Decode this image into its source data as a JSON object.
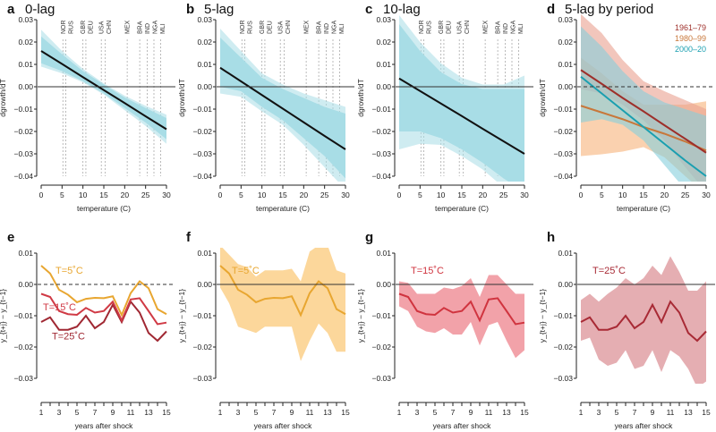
{
  "chart_data": [
    {
      "panel": "a",
      "title": "0-lag",
      "type": "line",
      "xlabel": "temperature (C)",
      "ylabel": "dgrowth/dT",
      "xlim": [
        0,
        30
      ],
      "ylim": [
        -0.04,
        0.03
      ],
      "xticks": [
        "0",
        "5",
        "10",
        "15",
        "20",
        "25",
        "30"
      ],
      "yticks": [
        "0.03",
        "0.02",
        "0.01",
        "0.00",
        "−0.01",
        "−0.02",
        "−0.03",
        "−0.04"
      ],
      "zero_line": "solid",
      "countries": [
        {
          "name": "NOR",
          "t": 5.2
        },
        {
          "name": "RUS",
          "t": 5.9
        },
        {
          "name": "GBR",
          "t": 10.0
        },
        {
          "name": "DEU",
          "t": 10.7
        },
        {
          "name": "USA",
          "t": 14.4
        },
        {
          "name": "CHN",
          "t": 15.3
        },
        {
          "name": "MEX",
          "t": 20.6
        },
        {
          "name": "BRA",
          "t": 23.6
        },
        {
          "name": "IND",
          "t": 25.4
        },
        {
          "name": "NGA",
          "t": 27.0
        },
        {
          "name": "MLI",
          "t": 28.6
        }
      ],
      "x": [
        0,
        5,
        10,
        15,
        20,
        25,
        30
      ],
      "series": [
        {
          "values": [
            0.016,
            0.0102,
            0.0043,
            -0.0015,
            -0.0073,
            -0.0132,
            -0.019
          ],
          "color": "#111111",
          "band_color": "#a8dde6",
          "ci_outer": {
            "lower": [
              0.009,
              0.006,
              0.002,
              -0.0035,
              -0.0105,
              -0.0175,
              -0.0255
            ],
            "upper": [
              0.0255,
              0.016,
              0.008,
              0.0015,
              -0.004,
              -0.0085,
              -0.0125
            ]
          },
          "ci_inner": {
            "lower": [
              0.0105,
              0.007,
              0.0025,
              -0.003,
              -0.0095,
              -0.016,
              -0.0235
            ],
            "upper": [
              0.0225,
              0.0145,
              0.007,
              0.001,
              -0.0048,
              -0.0095,
              -0.014
            ]
          }
        }
      ]
    },
    {
      "panel": "b",
      "title": "5-lag",
      "type": "line",
      "xlabel": "temperature (C)",
      "ylabel": "dgrowth/dT",
      "xlim": [
        0,
        30
      ],
      "ylim": [
        -0.04,
        0.03
      ],
      "xticks": [
        "0",
        "5",
        "10",
        "15",
        "20",
        "25",
        "30"
      ],
      "yticks": [
        "0.03",
        "0.02",
        "0.01",
        "0.00",
        "−0.01",
        "−0.02",
        "−0.03",
        "−0.04"
      ],
      "zero_line": "solid",
      "countries": [
        {
          "name": "NOR",
          "t": 5.2
        },
        {
          "name": "RUS",
          "t": 5.9
        },
        {
          "name": "GBR",
          "t": 10.0
        },
        {
          "name": "DEU",
          "t": 10.7
        },
        {
          "name": "USA",
          "t": 14.4
        },
        {
          "name": "CHN",
          "t": 15.3
        },
        {
          "name": "MEX",
          "t": 20.6
        },
        {
          "name": "BRA",
          "t": 23.6
        },
        {
          "name": "IND",
          "t": 25.4
        },
        {
          "name": "NGA",
          "t": 27.0
        },
        {
          "name": "MLI",
          "t": 28.6
        }
      ],
      "x": [
        0,
        5,
        10,
        15,
        20,
        25,
        30
      ],
      "series": [
        {
          "values": [
            0.0085,
            0.0024,
            -0.0037,
            -0.0098,
            -0.0159,
            -0.022,
            -0.028
          ],
          "color": "#111111",
          "band_color": "#a8dde6",
          "ci_outer": {
            "lower": [
              -0.003,
              -0.0045,
              -0.011,
              -0.017,
              -0.026,
              -0.036,
              -0.046
            ],
            "upper": [
              0.026,
              0.016,
              0.006,
              0.001,
              -0.003,
              -0.006,
              -0.009
            ]
          },
          "ci_inner": {
            "lower": [
              0.0,
              -0.002,
              -0.009,
              -0.015,
              -0.023,
              -0.031,
              -0.041
            ],
            "upper": [
              0.022,
              0.013,
              0.004,
              -0.001,
              -0.005,
              -0.009,
              -0.012
            ]
          }
        }
      ]
    },
    {
      "panel": "c",
      "title": "10-lag",
      "type": "line",
      "xlabel": "temperature (C)",
      "ylabel": "dgrowth/dT",
      "xlim": [
        0,
        30
      ],
      "ylim": [
        -0.04,
        0.03
      ],
      "xticks": [
        "0",
        "5",
        "10",
        "15",
        "20",
        "25",
        "30"
      ],
      "yticks": [
        "0.03",
        "0.02",
        "0.01",
        "0.00",
        "−0.01",
        "−0.02",
        "−0.03",
        "−0.04"
      ],
      "zero_line": "solid",
      "countries": [
        {
          "name": "NOR",
          "t": 5.2
        },
        {
          "name": "RUS",
          "t": 5.9
        },
        {
          "name": "GBR",
          "t": 10.0
        },
        {
          "name": "DEU",
          "t": 10.7
        },
        {
          "name": "USA",
          "t": 14.4
        },
        {
          "name": "CHN",
          "t": 15.3
        },
        {
          "name": "MEX",
          "t": 20.6
        },
        {
          "name": "BRA",
          "t": 23.6
        },
        {
          "name": "IND",
          "t": 25.4
        },
        {
          "name": "NGA",
          "t": 27.0
        },
        {
          "name": "MLI",
          "t": 28.6
        }
      ],
      "x": [
        0,
        5,
        10,
        15,
        20,
        25,
        30
      ],
      "series": [
        {
          "values": [
            0.0037,
            -0.0019,
            -0.0075,
            -0.0131,
            -0.0188,
            -0.0244,
            -0.03
          ],
          "color": "#111111",
          "band_color": "#a8dde6",
          "ci_outer": {
            "lower": [
              -0.028,
              -0.0255,
              -0.026,
              -0.031,
              -0.037,
              -0.045,
              -0.05
            ],
            "upper": [
              0.032,
              0.02,
              0.0105,
              0.004,
              0.001,
              0.001,
              0.005
            ]
          },
          "ci_inner": {
            "lower": [
              -0.02,
              -0.02,
              -0.023,
              -0.028,
              -0.034,
              -0.041,
              -0.047
            ],
            "upper": [
              0.028,
              0.016,
              0.0065,
              0.0012,
              -0.001,
              -0.001,
              -0.001
            ]
          }
        }
      ]
    },
    {
      "panel": "d",
      "title": "5-lag by period",
      "type": "line",
      "xlabel": "temperature (C)",
      "ylabel": "dgrowth/dT",
      "xlim": [
        0,
        30
      ],
      "ylim": [
        -0.04,
        0.03
      ],
      "xticks": [
        "0",
        "5",
        "10",
        "15",
        "20",
        "25",
        "30"
      ],
      "yticks": [
        "0.03",
        "0.02",
        "0.01",
        "0.00",
        "−0.01",
        "−0.02",
        "−0.03",
        "−0.04"
      ],
      "zero_line": "dashed",
      "legend": "top-right",
      "countries": [],
      "x": [
        0,
        5,
        10,
        15,
        20,
        25,
        30
      ],
      "series": [
        {
          "name": "1980–99",
          "values": [
            -0.0085,
            -0.0115,
            -0.0145,
            -0.018,
            -0.021,
            -0.0245,
            -0.0285
          ],
          "color": "#c8773a",
          "band_color": "#f7b27a",
          "ci_outer": {
            "lower": [
              -0.031,
              -0.0302,
              -0.029,
              -0.027,
              -0.0315,
              -0.04,
              -0.048
            ],
            "upper": [
              0.013,
              0.006,
              -0.002,
              -0.008,
              -0.008,
              -0.008,
              -0.0065
            ]
          }
        },
        {
          "name": "1961–79",
          "values": [
            0.0075,
            0.0013,
            -0.005,
            -0.011,
            -0.0172,
            -0.0233,
            -0.0295
          ],
          "color": "#9e2f2a",
          "band_color": "#e9a090",
          "ci_outer": {
            "lower": [
              -0.001,
              -0.003,
              -0.008,
              -0.015,
              -0.024,
              -0.036,
              -0.047
            ],
            "upper": [
              0.0325,
              0.024,
              0.012,
              0.0025,
              -0.002,
              -0.006,
              -0.01
            ]
          }
        },
        {
          "name": "2000–20",
          "values": [
            0.0045,
            -0.003,
            -0.0105,
            -0.018,
            -0.0255,
            -0.033,
            -0.04
          ],
          "color": "#1a9fb0",
          "band_color": "#86cfdc",
          "ci_outer": {
            "lower": [
              -0.016,
              -0.0145,
              -0.017,
              -0.024,
              -0.035,
              -0.046,
              -0.058
            ],
            "upper": [
              0.027,
              0.018,
              0.007,
              -0.002,
              -0.007,
              -0.01,
              -0.013
            ]
          }
        }
      ]
    },
    {
      "panel": "e",
      "title": "",
      "type": "line",
      "xlabel": "years after shock",
      "ylabel": "y_{t+j} − y_{t−1}",
      "xlim": [
        1,
        15
      ],
      "ylim": [
        -0.03,
        0.01
      ],
      "xticks": [
        "1",
        "3",
        "5",
        "7",
        "9",
        "11",
        "13",
        "15"
      ],
      "yticks": [
        "0.01",
        "0.00",
        "−0.01",
        "−0.02",
        "−0.03"
      ],
      "zero_line": "dashed",
      "x": [
        1,
        2,
        3,
        4,
        5,
        6,
        7,
        8,
        9,
        10,
        11,
        12,
        13,
        14,
        15
      ],
      "series": [
        {
          "name": "T=25˚C",
          "values": [
            -0.012,
            -0.0105,
            -0.0145,
            -0.0145,
            -0.0135,
            -0.01,
            -0.014,
            -0.012,
            -0.0065,
            -0.012,
            -0.0055,
            -0.009,
            -0.0155,
            -0.018,
            -0.015
          ],
          "color": "#a02833"
        },
        {
          "name": "T=15˚C",
          "values": [
            -0.003,
            -0.004,
            -0.0085,
            -0.0095,
            -0.0097,
            -0.0075,
            -0.009,
            -0.0085,
            -0.0055,
            -0.0115,
            -0.0048,
            -0.0044,
            -0.0085,
            -0.0127,
            -0.0122
          ],
          "color": "#d03a45"
        },
        {
          "name": "T=5˚C",
          "values": [
            0.006,
            0.0035,
            -0.0017,
            -0.0033,
            -0.0057,
            -0.0046,
            -0.0043,
            -0.0044,
            -0.0038,
            -0.0098,
            -0.0028,
            0.001,
            -0.0012,
            -0.0079,
            -0.0095
          ],
          "color": "#e8a630"
        }
      ]
    },
    {
      "panel": "f",
      "title": "",
      "type": "line",
      "xlabel": "years after shock",
      "ylabel": "y_{t+j} − y_{t−1}",
      "xlim": [
        1,
        15
      ],
      "ylim": [
        -0.03,
        0.01
      ],
      "xticks": [
        "1",
        "3",
        "5",
        "7",
        "9",
        "11",
        "13",
        "15"
      ],
      "yticks": [
        "0.01",
        "0.00",
        "−0.01",
        "−0.02",
        "−0.03"
      ],
      "zero_line": "solid",
      "x": [
        1,
        2,
        3,
        4,
        5,
        6,
        7,
        8,
        9,
        10,
        11,
        12,
        13,
        14,
        15
      ],
      "series": [
        {
          "name": "T=5˚C",
          "values": [
            0.006,
            0.0035,
            -0.0017,
            -0.0033,
            -0.0057,
            -0.0046,
            -0.0043,
            -0.0044,
            -0.0038,
            -0.0098,
            -0.0028,
            0.001,
            -0.0012,
            -0.0079,
            -0.0095
          ],
          "color": "#e8a630",
          "band_color": "#fbd08a",
          "ci_outer": {
            "lower": [
              -0.001,
              -0.006,
              -0.0135,
              -0.0145,
              -0.0155,
              -0.0135,
              -0.0135,
              -0.0135,
              -0.0135,
              -0.0245,
              -0.018,
              -0.0125,
              -0.0155,
              -0.0215,
              -0.0215
            ],
            "upper": [
              0.0125,
              0.0095,
              0.0065,
              0.0055,
              0.0025,
              0.0045,
              0.0045,
              0.0045,
              0.005,
              0.001,
              0.0105,
              0.0125,
              0.0125,
              0.0045,
              0.0035
            ]
          }
        }
      ]
    },
    {
      "panel": "g",
      "title": "",
      "type": "line",
      "xlabel": "years after shock",
      "ylabel": "y_{t+j} − y_{t−1}",
      "xlim": [
        1,
        15
      ],
      "ylim": [
        -0.03,
        0.01
      ],
      "xticks": [
        "1",
        "3",
        "5",
        "7",
        "9",
        "11",
        "13",
        "15"
      ],
      "yticks": [
        "0.01",
        "0.00",
        "−0.01",
        "−0.02",
        "−0.03"
      ],
      "zero_line": "solid",
      "x": [
        1,
        2,
        3,
        4,
        5,
        6,
        7,
        8,
        9,
        10,
        11,
        12,
        13,
        14,
        15
      ],
      "series": [
        {
          "name": "T=15˚C",
          "values": [
            -0.003,
            -0.004,
            -0.0085,
            -0.0095,
            -0.0097,
            -0.0075,
            -0.009,
            -0.0085,
            -0.0055,
            -0.0115,
            -0.0048,
            -0.0044,
            -0.0085,
            -0.0127,
            -0.0122
          ],
          "color": "#d0343f",
          "band_color": "#f0929a",
          "ci_outer": {
            "lower": [
              -0.007,
              -0.0085,
              -0.0135,
              -0.015,
              -0.0155,
              -0.014,
              -0.016,
              -0.016,
              -0.012,
              -0.0195,
              -0.013,
              -0.012,
              -0.018,
              -0.0235,
              -0.021
            ],
            "upper": [
              0.001,
              0.0005,
              -0.003,
              -0.003,
              -0.003,
              -0.001,
              -0.0015,
              -0.0005,
              0.002,
              -0.004,
              0.003,
              0.003,
              0.0,
              -0.003,
              -0.003
            ]
          }
        }
      ]
    },
    {
      "panel": "h",
      "title": "",
      "type": "line",
      "xlabel": "years after shock",
      "ylabel": "y_{t+j} − y_{t−1}",
      "xlim": [
        1,
        15
      ],
      "ylim": [
        -0.03,
        0.01
      ],
      "xticks": [
        "1",
        "3",
        "5",
        "7",
        "9",
        "11",
        "13",
        "15"
      ],
      "yticks": [
        "0.01",
        "0.00",
        "−0.01",
        "−0.02",
        "−0.03"
      ],
      "zero_line": "solid",
      "x": [
        1,
        2,
        3,
        4,
        5,
        6,
        7,
        8,
        9,
        10,
        11,
        12,
        13,
        14,
        15
      ],
      "series": [
        {
          "name": "T=25˚C",
          "values": [
            -0.012,
            -0.0105,
            -0.0145,
            -0.0145,
            -0.0135,
            -0.01,
            -0.014,
            -0.012,
            -0.0065,
            -0.012,
            -0.0055,
            -0.009,
            -0.0155,
            -0.018,
            -0.015
          ],
          "color": "#a82a35",
          "band_color": "#e0a0a5",
          "ci_outer": {
            "lower": [
              -0.018,
              -0.017,
              -0.024,
              -0.026,
              -0.025,
              -0.021,
              -0.027,
              -0.026,
              -0.021,
              -0.028,
              -0.021,
              -0.023,
              -0.027,
              -0.033,
              -0.031
            ],
            "upper": [
              -0.005,
              -0.003,
              -0.0055,
              -0.003,
              -0.001,
              0.002,
              0.0,
              0.002,
              0.006,
              0.003,
              0.009,
              0.004,
              -0.002,
              -0.002,
              0.001
            ]
          }
        }
      ]
    }
  ]
}
